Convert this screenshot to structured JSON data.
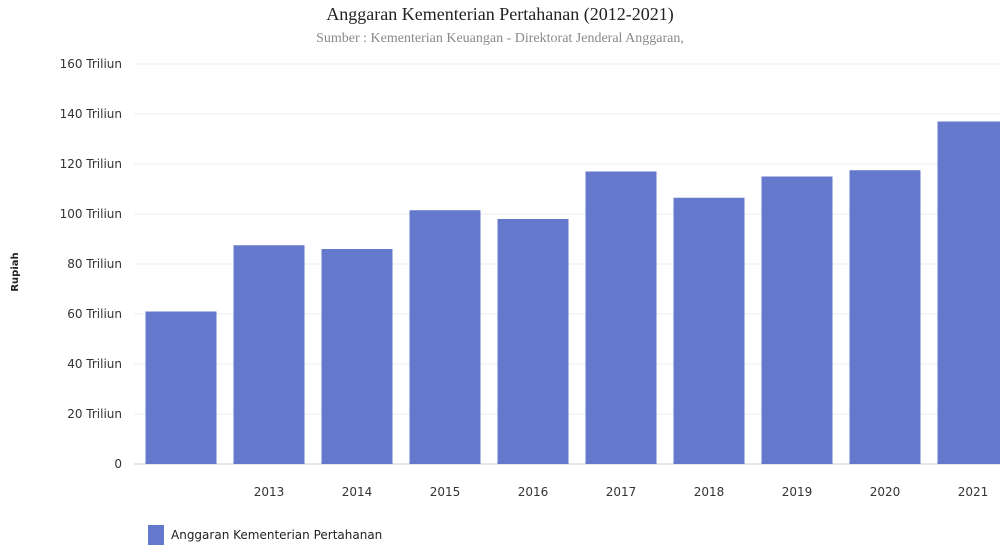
{
  "chart_data": {
    "type": "bar",
    "title": "Anggaran Kementerian Pertahanan (2012-2021)",
    "subtitle": "Sumber : Kementerian Keuangan - Direktorat Jenderal Anggaran,",
    "ylabel": "Rupiah",
    "xlabel": "",
    "categories": [
      "",
      "2013",
      "2014",
      "2015",
      "2016",
      "2017",
      "2018",
      "2019",
      "2020",
      "2021"
    ],
    "ylim": [
      0,
      160
    ],
    "yticks": [
      {
        "value": 0,
        "label": "0"
      },
      {
        "value": 20,
        "label": "20 Triliun"
      },
      {
        "value": 40,
        "label": "40 Triliun"
      },
      {
        "value": 60,
        "label": "60 Triliun"
      },
      {
        "value": 80,
        "label": "80 Triliun"
      },
      {
        "value": 100,
        "label": "100 Triliun"
      },
      {
        "value": 120,
        "label": "120 Triliun"
      },
      {
        "value": 140,
        "label": "140 Triliun"
      },
      {
        "value": 160,
        "label": "160 Triliun"
      }
    ],
    "series": [
      {
        "name": "Anggaran Kementerian Pertahanan",
        "color": "#6478cc",
        "values": [
          61,
          87.5,
          86,
          101.5,
          98,
          117,
          106.5,
          115,
          117.5,
          137
        ]
      }
    ],
    "grid": true,
    "legend_position": "bottom-left"
  }
}
